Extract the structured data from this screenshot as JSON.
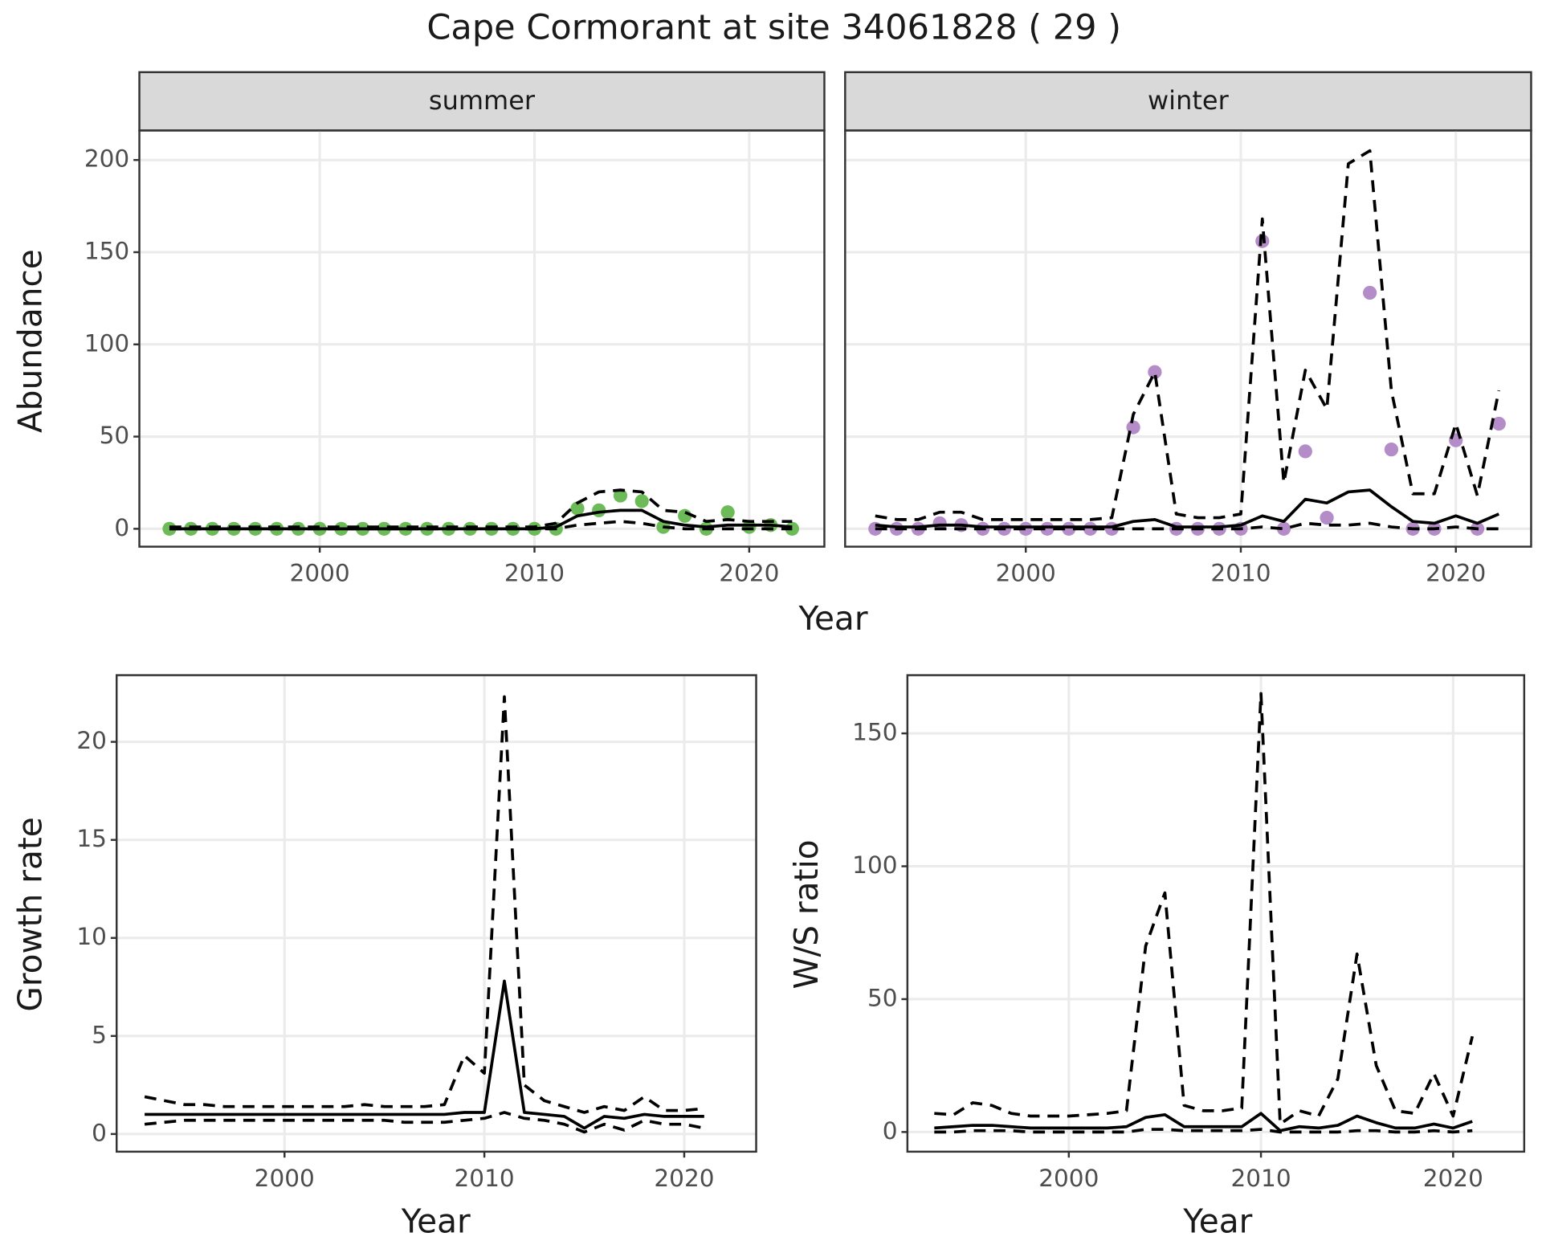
{
  "title": "Cape Cormorant at site 34061828 ( 29 )",
  "chart_data": [
    {
      "type": "line",
      "facet": "summer",
      "ylabel": "Abundance",
      "xlabel": "Year",
      "x": [
        1993,
        1994,
        1995,
        1996,
        1997,
        1998,
        1999,
        2000,
        2001,
        2002,
        2003,
        2004,
        2005,
        2006,
        2007,
        2008,
        2009,
        2010,
        2011,
        2012,
        2013,
        2014,
        2015,
        2016,
        2017,
        2018,
        2019,
        2020,
        2021,
        2022
      ],
      "xlim": [
        1991.6,
        2023.5
      ],
      "xticks": [
        2000,
        2010,
        2020
      ],
      "ylim": [
        -9.7,
        216
      ],
      "yticks": [
        0,
        50,
        100,
        150,
        200
      ],
      "grid": true,
      "series": [
        {
          "style": "point",
          "color": "#6dbb58",
          "values": [
            0,
            0,
            0,
            0,
            0,
            0,
            0,
            0,
            0,
            0,
            0,
            0,
            0,
            0,
            0,
            0,
            0,
            0,
            0,
            11,
            10,
            18,
            15,
            1,
            7,
            0,
            9,
            1,
            2,
            0
          ]
        },
        {
          "style": "solid",
          "color": "#000000",
          "values": [
            0,
            0,
            0,
            0,
            0,
            0,
            0,
            0,
            0,
            0,
            0,
            0,
            0,
            0,
            0,
            0,
            0,
            0,
            1,
            7,
            9,
            10,
            10,
            4,
            2,
            1,
            2,
            2,
            2,
            1
          ]
        },
        {
          "style": "dash",
          "color": "#000000",
          "values": [
            1,
            1,
            1,
            1,
            1,
            1,
            1,
            1,
            1,
            1,
            1,
            1,
            1,
            1,
            1,
            1,
            1,
            1,
            3,
            14,
            20,
            21,
            20,
            10,
            9,
            4,
            5,
            4,
            4,
            4
          ]
        },
        {
          "style": "dash",
          "color": "#000000",
          "values": [
            0,
            0,
            0,
            0,
            0,
            0,
            0,
            0,
            0,
            0,
            0,
            0,
            0,
            0,
            0,
            0,
            0,
            0,
            0,
            2,
            3,
            4,
            3,
            1,
            0,
            0,
            0,
            0,
            0,
            0
          ]
        }
      ]
    },
    {
      "type": "line",
      "facet": "winter",
      "sharey": true,
      "x": [
        1993,
        1994,
        1995,
        1996,
        1997,
        1998,
        1999,
        2000,
        2001,
        2002,
        2003,
        2004,
        2005,
        2006,
        2007,
        2008,
        2009,
        2010,
        2011,
        2012,
        2013,
        2014,
        2015,
        2016,
        2017,
        2018,
        2019,
        2020,
        2021,
        2022
      ],
      "xlim": [
        1991.6,
        2023.5
      ],
      "xticks": [
        2000,
        2010,
        2020
      ],
      "grid": true,
      "series": [
        {
          "style": "point",
          "color": "#b48cc8",
          "values": [
            0,
            0,
            0,
            3,
            2,
            0,
            0,
            0,
            0,
            0,
            0,
            0,
            55,
            85,
            0,
            0,
            0,
            0,
            156,
            0,
            42,
            6,
            null,
            128,
            43,
            0,
            0,
            48,
            0,
            57
          ]
        },
        {
          "style": "solid",
          "color": "#000000",
          "values": [
            2,
            1,
            1,
            2,
            2,
            1,
            1,
            1,
            1,
            1,
            1,
            1,
            4,
            5,
            1,
            1,
            1,
            2,
            7,
            4,
            16,
            14,
            20,
            21,
            12,
            4,
            3,
            7,
            3,
            8
          ]
        },
        {
          "style": "dash",
          "color": "#000000",
          "values": [
            7,
            5,
            5,
            9,
            9,
            5,
            5,
            5,
            5,
            5,
            5,
            6,
            62,
            85,
            8,
            6,
            6,
            8,
            168,
            25,
            86,
            65,
            198,
            205,
            75,
            19,
            19,
            57,
            18,
            75
          ]
        },
        {
          "style": "dash",
          "color": "#000000",
          "values": [
            0,
            0,
            0,
            0,
            0,
            0,
            0,
            0,
            0,
            0,
            0,
            0,
            0,
            0,
            0,
            0,
            0,
            0,
            1,
            0,
            3,
            2,
            2,
            3,
            1,
            0,
            0,
            1,
            0,
            0
          ]
        }
      ]
    },
    {
      "type": "line",
      "ylabel": "Growth rate",
      "xlabel": "Year",
      "x": [
        1993,
        1994,
        1995,
        1996,
        1997,
        1998,
        1999,
        2000,
        2001,
        2002,
        2003,
        2004,
        2005,
        2006,
        2007,
        2008,
        2009,
        2010,
        2011,
        2012,
        2013,
        2014,
        2015,
        2016,
        2017,
        2018,
        2019,
        2020,
        2021
      ],
      "xlim": [
        1991.6,
        2023.6
      ],
      "xticks": [
        2000,
        2010,
        2020
      ],
      "ylim": [
        -0.9,
        23.4
      ],
      "yticks": [
        0,
        5,
        10,
        15,
        20
      ],
      "grid": true,
      "series": [
        {
          "style": "solid",
          "color": "#000000",
          "values": [
            1.0,
            1.0,
            1.0,
            1.0,
            1.0,
            1.0,
            1.0,
            1.0,
            1.0,
            1.0,
            1.0,
            1.0,
            1.0,
            1.0,
            1.0,
            1.0,
            1.1,
            1.1,
            7.8,
            1.1,
            1.0,
            0.9,
            0.3,
            0.9,
            0.8,
            1.0,
            0.9,
            0.9,
            0.9
          ]
        },
        {
          "style": "dash",
          "color": "#000000",
          "values": [
            1.9,
            1.7,
            1.5,
            1.5,
            1.4,
            1.4,
            1.4,
            1.4,
            1.4,
            1.4,
            1.4,
            1.5,
            1.4,
            1.4,
            1.4,
            1.5,
            4.0,
            3.1,
            22.3,
            2.5,
            1.7,
            1.4,
            1.1,
            1.4,
            1.2,
            1.9,
            1.2,
            1.2,
            1.3
          ]
        },
        {
          "style": "dash",
          "color": "#000000",
          "values": [
            0.5,
            0.6,
            0.7,
            0.7,
            0.7,
            0.7,
            0.7,
            0.7,
            0.7,
            0.7,
            0.7,
            0.7,
            0.7,
            0.6,
            0.6,
            0.6,
            0.7,
            0.8,
            1.1,
            0.8,
            0.7,
            0.5,
            0.1,
            0.5,
            0.2,
            0.7,
            0.5,
            0.5,
            0.3
          ]
        }
      ]
    },
    {
      "type": "line",
      "ylabel": "W/S ratio",
      "xlabel": "Year",
      "x": [
        1993,
        1994,
        1995,
        1996,
        1997,
        1998,
        1999,
        2000,
        2001,
        2002,
        2003,
        2004,
        2005,
        2006,
        2007,
        2008,
        2009,
        2010,
        2011,
        2012,
        2013,
        2014,
        2015,
        2016,
        2017,
        2018,
        2019,
        2020,
        2021
      ],
      "xlim": [
        1991.6,
        2023.7
      ],
      "xticks": [
        2000,
        2010,
        2020
      ],
      "ylim": [
        -7.4,
        171.9
      ],
      "yticks": [
        0,
        50,
        100,
        150
      ],
      "grid": true,
      "series": [
        {
          "style": "solid",
          "color": "#000000",
          "values": [
            1.5,
            2,
            2.5,
            2.5,
            2,
            1.5,
            1.5,
            1.5,
            1.5,
            1.5,
            2,
            5.5,
            6.5,
            2,
            2,
            2,
            2,
            7,
            0.5,
            2,
            1.5,
            2.5,
            6,
            3.5,
            1.5,
            1.5,
            3,
            1.5,
            4
          ]
        },
        {
          "style": "dash",
          "color": "#000000",
          "values": [
            7,
            6.5,
            11,
            10,
            7,
            6,
            6,
            6,
            6.5,
            7,
            8,
            70,
            90,
            10,
            8,
            8,
            9,
            165,
            3,
            8,
            6,
            20,
            67,
            25,
            8,
            7,
            22,
            6,
            36
          ]
        },
        {
          "style": "dash",
          "color": "#000000",
          "values": [
            0,
            0,
            0.5,
            0.5,
            0.5,
            0,
            0,
            0,
            0,
            0,
            0,
            1,
            1,
            0.5,
            0.5,
            0.5,
            0.5,
            1,
            0,
            0,
            0,
            0,
            0.5,
            0.5,
            0,
            0,
            0.5,
            0,
            0.5
          ]
        }
      ]
    }
  ]
}
